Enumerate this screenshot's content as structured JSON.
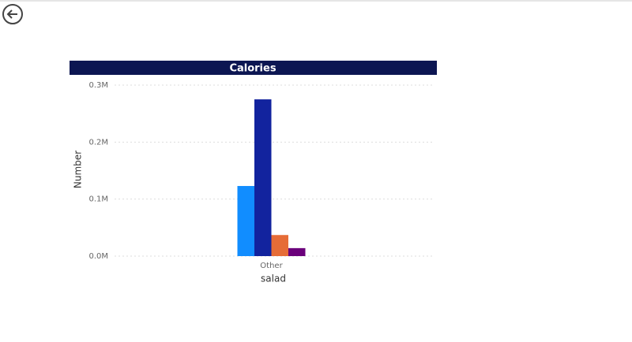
{
  "chart_data": {
    "type": "bar",
    "title": "Calories",
    "x_label": "salad",
    "y_label": "Number",
    "categories": [
      "Other"
    ],
    "series": [
      {
        "color": "#118dff",
        "values": [
          123000
        ]
      },
      {
        "color": "#12239e",
        "values": [
          275000
        ]
      },
      {
        "color": "#e66c37",
        "values": [
          37000
        ]
      },
      {
        "color": "#6b007b",
        "values": [
          14000
        ]
      }
    ],
    "ylim": [
      0,
      300000
    ],
    "yticks": [
      {
        "value": 0,
        "label": "0.0M"
      },
      {
        "value": 100000,
        "label": "0.1M"
      },
      {
        "value": 200000,
        "label": "0.2M"
      },
      {
        "value": 300000,
        "label": "0.3M"
      }
    ],
    "grid": true
  }
}
